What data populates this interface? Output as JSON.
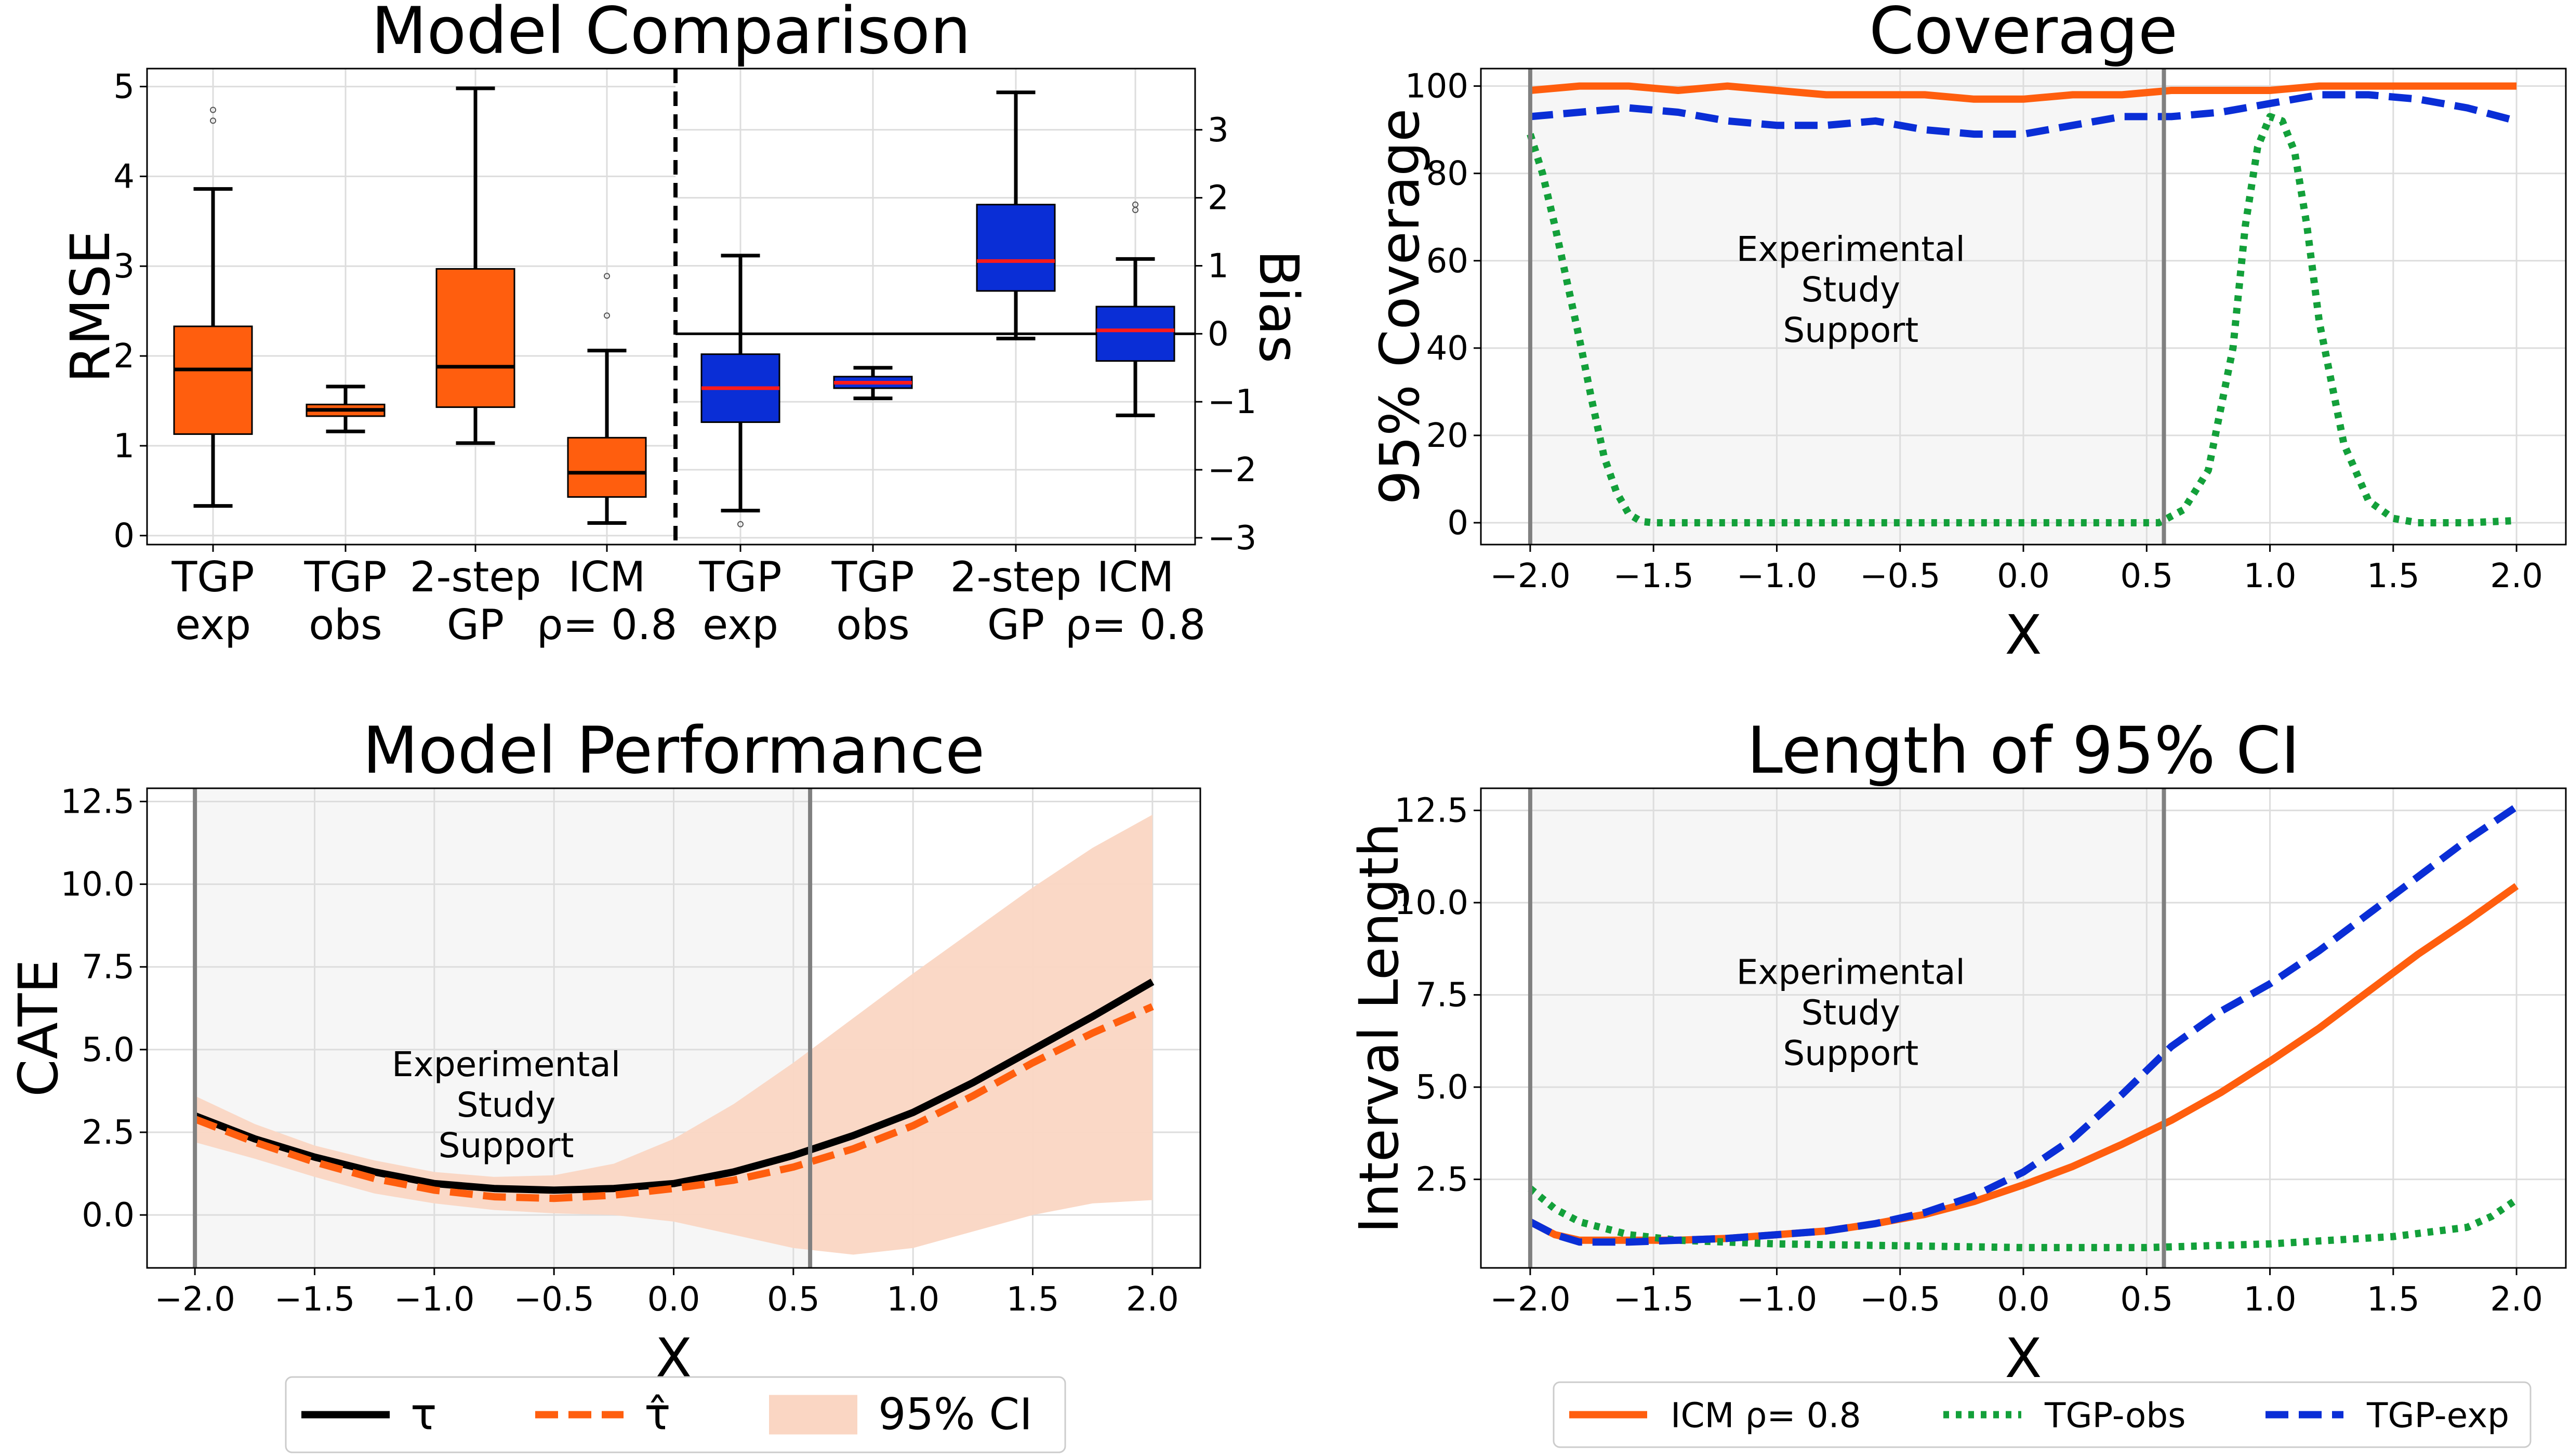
{
  "colors": {
    "orange": "#FF5E0E",
    "blue": "#0A2ED6",
    "green": "#13A03A",
    "black": "#000000",
    "median_red": "#FF1A1A",
    "shade": "#F6F6F6",
    "ci_fill": "#FAD6C3",
    "support_line": "#808080",
    "grid": "#DDDDDD"
  },
  "chart_data": [
    {
      "id": "model-comparison",
      "type": "box",
      "title": "Model Comparison",
      "categories": [
        "TGP\nexp",
        "TGP\nobs",
        "2-step\nGP",
        "ICM\nρ= 0.8"
      ],
      "left_panel": {
        "ylabel": "RMSE",
        "ylim": [
          -0.1,
          5.2
        ],
        "yticks": [
          0,
          1,
          2,
          3,
          4,
          5
        ],
        "grid": true,
        "boxes": [
          {
            "whislo": 0.33,
            "q1": 1.13,
            "med": 1.85,
            "q3": 2.33,
            "whishi": 3.86,
            "fliers": [
              4.62,
              4.74
            ]
          },
          {
            "whislo": 1.16,
            "q1": 1.33,
            "med": 1.4,
            "q3": 1.46,
            "whishi": 1.66,
            "fliers": []
          },
          {
            "whislo": 1.03,
            "q1": 1.43,
            "med": 1.88,
            "q3": 2.97,
            "whishi": 4.98,
            "fliers": []
          },
          {
            "whislo": 0.14,
            "q1": 0.43,
            "med": 0.7,
            "q3": 1.09,
            "whishi": 2.06,
            "fliers": [
              2.45,
              2.89
            ]
          }
        ]
      },
      "right_panel": {
        "ylabel": "Bias",
        "ylim": [
          -3.1,
          3.9
        ],
        "yticks": [
          -3,
          -2,
          -1,
          0,
          1,
          2,
          3
        ],
        "grid": true,
        "hline": 0,
        "boxes": [
          {
            "whislo": -2.6,
            "q1": -1.3,
            "med": -0.8,
            "q3": -0.3,
            "whishi": 1.15,
            "fliers": [
              -2.8
            ]
          },
          {
            "whislo": -0.95,
            "q1": -0.8,
            "med": -0.72,
            "q3": -0.63,
            "whishi": -0.5,
            "fliers": []
          },
          {
            "whislo": -0.07,
            "q1": 0.63,
            "med": 1.07,
            "q3": 1.9,
            "whishi": 3.55,
            "fliers": []
          },
          {
            "whislo": -1.2,
            "q1": -0.4,
            "med": 0.05,
            "q3": 0.4,
            "whishi": 1.1,
            "fliers": [
              1.82,
              1.9
            ]
          }
        ]
      }
    },
    {
      "id": "coverage",
      "type": "line",
      "title": "Coverage",
      "xlabel": "X",
      "ylabel": "95% Coverage",
      "xlim": [
        -2.2,
        2.2
      ],
      "ylim": [
        -5,
        104
      ],
      "xticks": [
        -2.0,
        -1.5,
        -1.0,
        -0.5,
        0.0,
        0.5,
        1.0,
        1.5,
        2.0
      ],
      "yticks": [
        0,
        20,
        40,
        60,
        80,
        100
      ],
      "grid": true,
      "support_region": [
        -2.0,
        0.57
      ],
      "annotation": "Experimental\nStudy\nSupport",
      "annotation_pos": [
        -0.7,
        60
      ],
      "series": [
        {
          "name": "ICM ρ= 0.8",
          "color_key": "orange",
          "style": "solid",
          "x": [
            -2.0,
            -1.8,
            -1.6,
            -1.4,
            -1.2,
            -1.0,
            -0.8,
            -0.6,
            -0.4,
            -0.2,
            0.0,
            0.2,
            0.4,
            0.6,
            0.8,
            1.0,
            1.2,
            1.4,
            1.6,
            1.8,
            2.0
          ],
          "y": [
            99,
            100,
            100,
            99,
            100,
            99,
            98,
            98,
            98,
            97,
            97,
            98,
            98,
            99,
            99,
            99,
            100,
            100,
            100,
            100,
            100
          ]
        },
        {
          "name": "TGP-obs",
          "color_key": "green",
          "style": "dotted",
          "x": [
            -2.0,
            -1.95,
            -1.9,
            -1.85,
            -1.8,
            -1.75,
            -1.7,
            -1.65,
            -1.6,
            -1.55,
            -1.5,
            -1.0,
            0.0,
            0.55,
            0.65,
            0.75,
            0.85,
            0.9,
            0.95,
            1.0,
            1.05,
            1.1,
            1.15,
            1.2,
            1.3,
            1.4,
            1.5,
            1.6,
            1.8,
            2.0
          ],
          "y": [
            89,
            80,
            68,
            55,
            42,
            28,
            15,
            7,
            2,
            0.3,
            0,
            0,
            0,
            0,
            3,
            12,
            40,
            68,
            86,
            93,
            92,
            85,
            68,
            46,
            18,
            5,
            1,
            0,
            0,
            0.5
          ]
        },
        {
          "name": "TGP-exp",
          "color_key": "blue",
          "style": "dashed",
          "x": [
            -2.0,
            -1.8,
            -1.6,
            -1.4,
            -1.2,
            -1.0,
            -0.8,
            -0.6,
            -0.4,
            -0.2,
            0.0,
            0.2,
            0.4,
            0.6,
            0.8,
            1.0,
            1.2,
            1.4,
            1.6,
            1.8,
            2.0
          ],
          "y": [
            93,
            94,
            95,
            94,
            92,
            91,
            91,
            92,
            90,
            89,
            89,
            91,
            93,
            93,
            94,
            96,
            98,
            98,
            97,
            95,
            92
          ]
        }
      ]
    },
    {
      "id": "model-performance",
      "type": "line",
      "title": "Model Performance",
      "xlabel": "X",
      "ylabel": "CATE",
      "xlim": [
        -2.2,
        2.2
      ],
      "ylim": [
        -1.6,
        12.9
      ],
      "xticks": [
        -2.0,
        -1.5,
        -1.0,
        -0.5,
        0.0,
        0.5,
        1.0,
        1.5,
        2.0
      ],
      "yticks": [
        0.0,
        2.5,
        5.0,
        7.5,
        10.0,
        12.5
      ],
      "grid": true,
      "support_region": [
        -2.0,
        0.57
      ],
      "annotation": "Experimental\nStudy\nSupport",
      "annotation_pos": [
        -0.7,
        4.2
      ],
      "x": [
        -2.0,
        -1.75,
        -1.5,
        -1.25,
        -1.0,
        -0.75,
        -0.5,
        -0.25,
        0.0,
        0.25,
        0.5,
        0.75,
        1.0,
        1.25,
        1.5,
        1.75,
        2.0
      ],
      "series": [
        {
          "name": "τ",
          "color_key": "black",
          "style": "solid",
          "y": [
            3.0,
            2.3,
            1.75,
            1.3,
            0.95,
            0.8,
            0.75,
            0.8,
            0.95,
            1.3,
            1.8,
            2.4,
            3.1,
            4.0,
            5.0,
            6.0,
            7.05
          ]
        },
        {
          "name": "τ̂",
          "color_key": "orange",
          "style": "dashed",
          "y": [
            2.9,
            2.2,
            1.6,
            1.1,
            0.75,
            0.55,
            0.5,
            0.6,
            0.8,
            1.05,
            1.45,
            2.0,
            2.7,
            3.6,
            4.6,
            5.5,
            6.3
          ]
        },
        {
          "name": "95% CI",
          "color_key": "ci_fill",
          "style": "band",
          "lower": [
            2.2,
            1.7,
            1.15,
            0.65,
            0.35,
            0.15,
            0.05,
            0.0,
            -0.2,
            -0.6,
            -1.0,
            -1.2,
            -1.0,
            -0.5,
            0.0,
            0.35,
            0.45
          ],
          "upper": [
            3.6,
            2.75,
            2.1,
            1.65,
            1.3,
            1.15,
            1.2,
            1.55,
            2.3,
            3.35,
            4.6,
            5.95,
            7.3,
            8.6,
            9.9,
            11.1,
            12.1
          ]
        }
      ]
    },
    {
      "id": "ci-length",
      "type": "line",
      "title": "Length of 95% CI",
      "xlabel": "X",
      "ylabel": "Interval Length",
      "xlim": [
        -2.2,
        2.2
      ],
      "ylim": [
        0.1,
        13.1
      ],
      "xticks": [
        -2.0,
        -1.5,
        -1.0,
        -0.5,
        0.0,
        0.5,
        1.0,
        1.5,
        2.0
      ],
      "yticks": [
        2.5,
        5.0,
        7.5,
        10.0,
        12.5
      ],
      "grid": true,
      "support_region": [
        -2.0,
        0.57
      ],
      "annotation": "Experimental\nStudy\nSupport",
      "annotation_pos": [
        -0.7,
        7.8
      ],
      "series": [
        {
          "name": "ICM ρ= 0.8",
          "color_key": "orange",
          "style": "solid",
          "x": [
            -2.0,
            -1.9,
            -1.8,
            -1.6,
            -1.4,
            -1.2,
            -1.0,
            -0.8,
            -0.6,
            -0.4,
            -0.2,
            0.0,
            0.2,
            0.4,
            0.6,
            0.8,
            1.0,
            1.2,
            1.4,
            1.6,
            1.8,
            2.0
          ],
          "y": [
            1.35,
            1.0,
            0.85,
            0.85,
            0.85,
            0.9,
            1.0,
            1.1,
            1.3,
            1.55,
            1.9,
            2.35,
            2.85,
            3.45,
            4.1,
            4.85,
            5.7,
            6.6,
            7.6,
            8.6,
            9.5,
            10.45
          ]
        },
        {
          "name": "TGP-obs",
          "color_key": "green",
          "style": "dotted",
          "x": [
            -2.0,
            -1.9,
            -1.8,
            -1.6,
            -1.4,
            -1.2,
            -1.0,
            -0.5,
            0.0,
            0.5,
            1.0,
            1.5,
            1.8,
            1.9,
            2.0
          ],
          "y": [
            2.25,
            1.7,
            1.35,
            1.0,
            0.85,
            0.8,
            0.75,
            0.7,
            0.65,
            0.65,
            0.75,
            0.95,
            1.2,
            1.5,
            1.95
          ]
        },
        {
          "name": "TGP-exp",
          "color_key": "blue",
          "style": "dashed",
          "x": [
            -2.0,
            -1.9,
            -1.8,
            -1.6,
            -1.4,
            -1.2,
            -1.0,
            -0.8,
            -0.6,
            -0.4,
            -0.2,
            0.0,
            0.2,
            0.4,
            0.6,
            0.8,
            1.0,
            1.2,
            1.4,
            1.6,
            1.8,
            2.0
          ],
          "y": [
            1.35,
            1.0,
            0.8,
            0.8,
            0.85,
            0.9,
            1.0,
            1.1,
            1.3,
            1.6,
            2.05,
            2.7,
            3.6,
            4.8,
            6.1,
            7.05,
            7.8,
            8.7,
            9.7,
            10.7,
            11.7,
            12.6
          ]
        }
      ]
    }
  ],
  "legends": {
    "left": [
      {
        "label": "τ",
        "style": "solid",
        "color_key": "black"
      },
      {
        "label": "τ̂",
        "style": "dashed",
        "color_key": "orange"
      },
      {
        "label": "95% CI",
        "style": "patch",
        "color_key": "ci_fill"
      }
    ],
    "right": [
      {
        "label": "ICM ρ= 0.8",
        "style": "solid",
        "color_key": "orange"
      },
      {
        "label": "TGP-obs",
        "style": "dotted",
        "color_key": "green"
      },
      {
        "label": "TGP-exp",
        "style": "dashed",
        "color_key": "blue"
      }
    ]
  }
}
